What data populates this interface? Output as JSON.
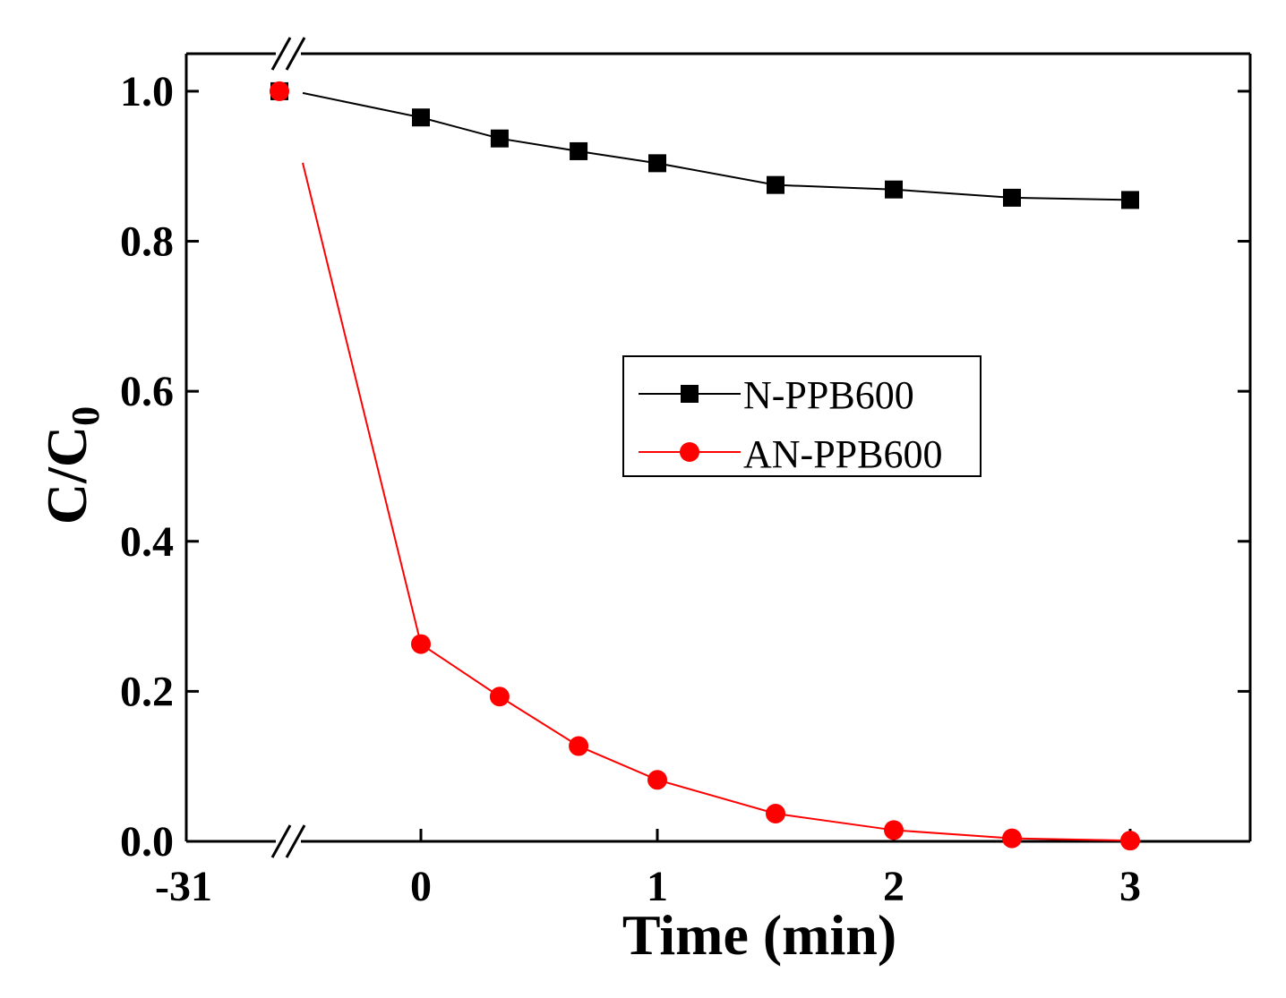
{
  "chart_data": {
    "type": "line",
    "title": "",
    "xlabel": "Time (min)",
    "ylabel": "C/C",
    "ylabel_subscript": "0",
    "ylim": [
      0.0,
      1.05
    ],
    "yticks": [
      0.0,
      0.2,
      0.4,
      0.6,
      0.8,
      1.0
    ],
    "ytick_labels": [
      "0.0",
      "0.2",
      "0.4",
      "0.6",
      "0.8",
      "1.0"
    ],
    "xlim_main": [
      -0.75,
      3.5
    ],
    "x_break_label": "-31",
    "x_break_value": -31,
    "xticks": [
      0,
      1,
      2,
      3
    ],
    "xtick_labels": [
      "0",
      "1",
      "2",
      "3"
    ],
    "legend_position": "center-right",
    "series": [
      {
        "name": "N-PPB600",
        "color": "#000000",
        "marker": "square",
        "x": [
          -31,
          0,
          0.333,
          0.667,
          1,
          1.5,
          2,
          2.5,
          3
        ],
        "y": [
          1.0,
          0.965,
          0.937,
          0.92,
          0.904,
          0.875,
          0.869,
          0.858,
          0.855
        ]
      },
      {
        "name": "AN-PPB600",
        "color": "#ff0000",
        "marker": "circle",
        "x": [
          -31,
          0,
          0.333,
          0.667,
          1,
          1.5,
          2,
          2.5,
          3
        ],
        "y": [
          1.0,
          0.263,
          0.193,
          0.127,
          0.082,
          0.037,
          0.015,
          0.004,
          0.001
        ]
      }
    ]
  }
}
